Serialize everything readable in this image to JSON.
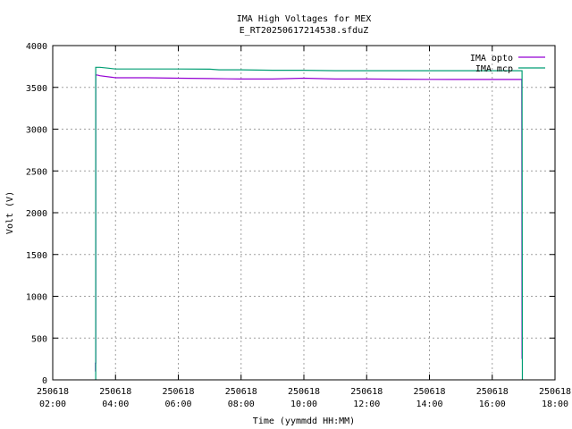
{
  "chart_data": {
    "type": "line",
    "title": "IMA High Voltages for MEX",
    "subtitle": "E_RT20250617214538.sfduZ",
    "xlabel": "Time (yymmdd HH:MM)",
    "ylabel": "Volt (V)",
    "xlim": [
      2.0,
      18.0
    ],
    "ylim": [
      0,
      4000
    ],
    "grid": true,
    "legend_position": "top-right",
    "x_ticks": [
      {
        "value": 2.0,
        "date": "250618",
        "time": "02:00"
      },
      {
        "value": 4.0,
        "date": "250618",
        "time": "04:00"
      },
      {
        "value": 6.0,
        "date": "250618",
        "time": "06:00"
      },
      {
        "value": 8.0,
        "date": "250618",
        "time": "08:00"
      },
      {
        "value": 10.0,
        "date": "250618",
        "time": "10:00"
      },
      {
        "value": 12.0,
        "date": "250618",
        "time": "12:00"
      },
      {
        "value": 14.0,
        "date": "250618",
        "time": "14:00"
      },
      {
        "value": 16.0,
        "date": "250618",
        "time": "16:00"
      },
      {
        "value": 18.0,
        "date": "250618",
        "time": "18:00"
      }
    ],
    "y_ticks": [
      0,
      500,
      1000,
      1500,
      2000,
      2500,
      3000,
      3500,
      4000
    ],
    "series": [
      {
        "name": "IMA opto",
        "color": "#9400d3",
        "x": [
          3.36,
          3.36,
          3.37,
          3.37,
          3.45,
          3.5,
          3.9,
          4.0,
          5.0,
          6.0,
          7.0,
          8.0,
          9.0,
          10.0,
          11.0,
          12.0,
          13.0,
          14.0,
          15.0,
          16.0,
          16.9,
          16.94,
          16.95
        ],
        "y": [
          100,
          200,
          200,
          3650,
          3645,
          3640,
          3620,
          3615,
          3615,
          3610,
          3605,
          3600,
          3600,
          3610,
          3600,
          3600,
          3598,
          3596,
          3595,
          3595,
          3595,
          3595,
          250
        ]
      },
      {
        "name": "IMA mcp",
        "color": "#009e73",
        "x": [
          3.37,
          3.37,
          3.5,
          3.75,
          4.0,
          5.0,
          6.0,
          7.0,
          7.3,
          8.0,
          9.0,
          10.0,
          11.0,
          12.0,
          13.0,
          14.0,
          15.0,
          16.0,
          16.9,
          16.95,
          16.96
        ],
        "y": [
          0,
          3740,
          3740,
          3730,
          3720,
          3720,
          3720,
          3718,
          3710,
          3710,
          3705,
          3705,
          3700,
          3700,
          3700,
          3700,
          3700,
          3700,
          3700,
          3700,
          0
        ]
      }
    ]
  }
}
